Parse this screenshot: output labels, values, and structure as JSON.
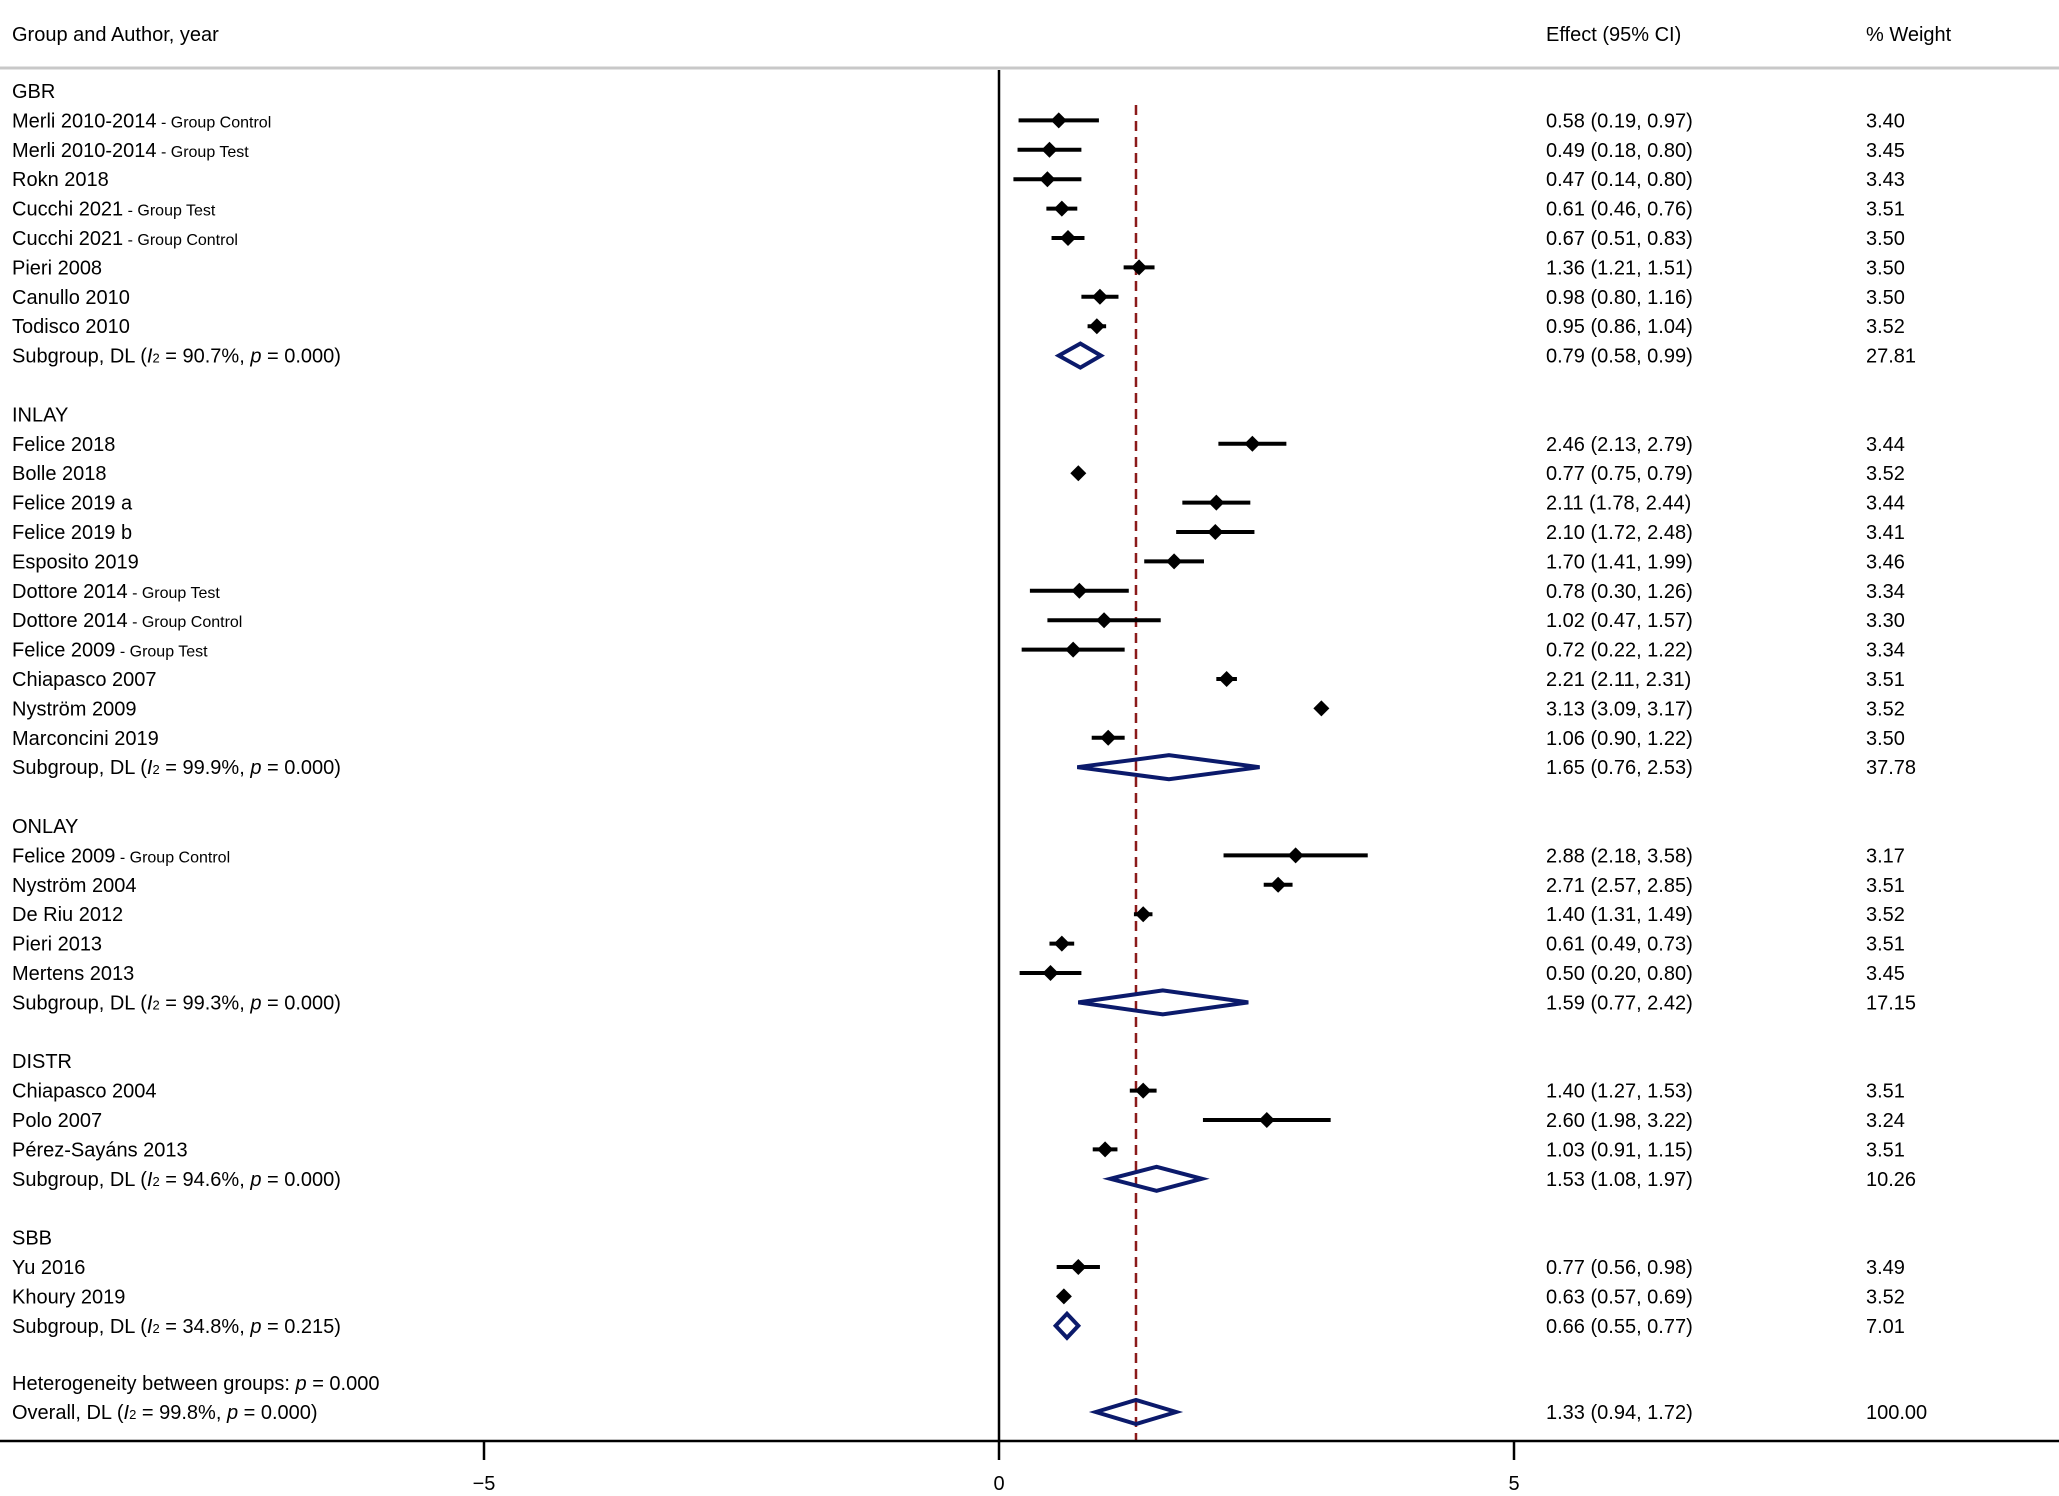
{
  "headers": {
    "study": "Group and Author, year",
    "effect": "Effect (95% CI)",
    "weight": "% Weight"
  },
  "chart_data": {
    "type": "forest",
    "overall_estimate": 1.33,
    "xaxis": {
      "ticks": [
        -5,
        0,
        5
      ],
      "tick_labels": [
        "−5",
        "0",
        "5"
      ],
      "range": [
        -10,
        10
      ]
    },
    "colors": {
      "study_marker": "#000000",
      "diamond": "#0b1a6b",
      "reference_line": "#8b1a1a",
      "rule": "#c8c8c8"
    },
    "groups": [
      {
        "name": "GBR",
        "studies": [
          {
            "author": "Merli 2010-2014",
            "note": " - Group Control",
            "est": 0.58,
            "lo": 0.19,
            "hi": 0.97,
            "ci": "0.58 (0.19, 0.97)",
            "weight": "3.40"
          },
          {
            "author": "Merli 2010-2014",
            "note": " - Group Test",
            "est": 0.49,
            "lo": 0.18,
            "hi": 0.8,
            "ci": "0.49 (0.18, 0.80)",
            "weight": "3.45"
          },
          {
            "author": "Rokn 2018",
            "note": "",
            "est": 0.47,
            "lo": 0.14,
            "hi": 0.8,
            "ci": "0.47 (0.14, 0.80)",
            "weight": "3.43"
          },
          {
            "author": "Cucchi  2021",
            "note": " - Group Test",
            "est": 0.61,
            "lo": 0.46,
            "hi": 0.76,
            "ci": "0.61 (0.46, 0.76)",
            "weight": "3.51"
          },
          {
            "author": "Cucchi  2021",
            "note": " - Group Control",
            "est": 0.67,
            "lo": 0.51,
            "hi": 0.83,
            "ci": "0.67 (0.51, 0.83)",
            "weight": "3.50"
          },
          {
            "author": "Pieri 2008",
            "note": "",
            "est": 1.36,
            "lo": 1.21,
            "hi": 1.51,
            "ci": "1.36 (1.21, 1.51)",
            "weight": "3.50"
          },
          {
            "author": "Canullo 2010",
            "note": "",
            "est": 0.98,
            "lo": 0.8,
            "hi": 1.16,
            "ci": "0.98 (0.80, 1.16)",
            "weight": "3.50"
          },
          {
            "author": "Todisco 2010",
            "note": "",
            "est": 0.95,
            "lo": 0.86,
            "hi": 1.04,
            "ci": "0.95 (0.86, 1.04)",
            "weight": "3.52"
          }
        ],
        "subgroup": {
          "i2": "90.7%",
          "p": "0.000",
          "est": 0.79,
          "lo": 0.58,
          "hi": 0.99,
          "ci": "0.79 (0.58, 0.99)",
          "weight": "27.81"
        }
      },
      {
        "name": "INLAY",
        "studies": [
          {
            "author": "Felice 2018",
            "note": "",
            "est": 2.46,
            "lo": 2.13,
            "hi": 2.79,
            "ci": "2.46 (2.13, 2.79)",
            "weight": "3.44"
          },
          {
            "author": "Bolle 2018",
            "note": "",
            "est": 0.77,
            "lo": 0.75,
            "hi": 0.79,
            "ci": "0.77 (0.75, 0.79)",
            "weight": "3.52"
          },
          {
            "author": "Felice  2019 a",
            "note": "",
            "est": 2.11,
            "lo": 1.78,
            "hi": 2.44,
            "ci": "2.11 (1.78, 2.44)",
            "weight": "3.44"
          },
          {
            "author": "Felice  2019 b",
            "note": "",
            "est": 2.1,
            "lo": 1.72,
            "hi": 2.48,
            "ci": "2.10 (1.72, 2.48)",
            "weight": "3.41"
          },
          {
            "author": "Esposito 2019",
            "note": "",
            "est": 1.7,
            "lo": 1.41,
            "hi": 1.99,
            "ci": "1.70 (1.41, 1.99)",
            "weight": "3.46"
          },
          {
            "author": "Dottore  2014",
            "note": " - Group Test",
            "est": 0.78,
            "lo": 0.3,
            "hi": 1.26,
            "ci": "0.78 (0.30, 1.26)",
            "weight": "3.34"
          },
          {
            "author": "Dottore  2014",
            "note": " - Group Control",
            "est": 1.02,
            "lo": 0.47,
            "hi": 1.57,
            "ci": "1.02 (0.47, 1.57)",
            "weight": "3.30"
          },
          {
            "author": "Felice  2009",
            "note": " - Group Test",
            "est": 0.72,
            "lo": 0.22,
            "hi": 1.22,
            "ci": "0.72 (0.22, 1.22)",
            "weight": "3.34"
          },
          {
            "author": "Chiapasco 2007",
            "note": "",
            "est": 2.21,
            "lo": 2.11,
            "hi": 2.31,
            "ci": "2.21 (2.11, 2.31)",
            "weight": "3.51"
          },
          {
            "author": "Nyström 2009",
            "note": "",
            "est": 3.13,
            "lo": 3.09,
            "hi": 3.17,
            "ci": "3.13 (3.09, 3.17)",
            "weight": "3.52"
          },
          {
            "author": "Marconcini 2019",
            "note": "",
            "est": 1.06,
            "lo": 0.9,
            "hi": 1.22,
            "ci": "1.06 (0.90, 1.22)",
            "weight": "3.50"
          }
        ],
        "subgroup": {
          "i2": "99.9%",
          "p": "0.000",
          "est": 1.65,
          "lo": 0.76,
          "hi": 2.53,
          "ci": "1.65 (0.76, 2.53)",
          "weight": "37.78"
        }
      },
      {
        "name": "ONLAY",
        "studies": [
          {
            "author": "Felice  2009",
            "note": " - Group Control",
            "est": 2.88,
            "lo": 2.18,
            "hi": 3.58,
            "ci": "2.88 (2.18, 3.58)",
            "weight": "3.17"
          },
          {
            "author": "Nyström 2004",
            "note": "",
            "est": 2.71,
            "lo": 2.57,
            "hi": 2.85,
            "ci": "2.71 (2.57, 2.85)",
            "weight": "3.51"
          },
          {
            "author": "De Riu 2012",
            "note": "",
            "est": 1.4,
            "lo": 1.31,
            "hi": 1.49,
            "ci": "1.40 (1.31, 1.49)",
            "weight": "3.52"
          },
          {
            "author": "Pieri 2013",
            "note": "",
            "est": 0.61,
            "lo": 0.49,
            "hi": 0.73,
            "ci": "0.61 (0.49, 0.73)",
            "weight": "3.51"
          },
          {
            "author": "Mertens 2013",
            "note": "",
            "est": 0.5,
            "lo": 0.2,
            "hi": 0.8,
            "ci": "0.50 (0.20, 0.80)",
            "weight": "3.45"
          }
        ],
        "subgroup": {
          "i2": "99.3%",
          "p": "0.000",
          "est": 1.59,
          "lo": 0.77,
          "hi": 2.42,
          "ci": "1.59 (0.77, 2.42)",
          "weight": "17.15"
        }
      },
      {
        "name": "DISTR",
        "studies": [
          {
            "author": "Chiapasco 2004",
            "note": "",
            "est": 1.4,
            "lo": 1.27,
            "hi": 1.53,
            "ci": "1.40 (1.27, 1.53)",
            "weight": "3.51"
          },
          {
            "author": "Polo 2007",
            "note": "",
            "est": 2.6,
            "lo": 1.98,
            "hi": 3.22,
            "ci": "2.60 (1.98, 3.22)",
            "weight": "3.24"
          },
          {
            "author": "Pérez-Sayáns 2013",
            "note": "",
            "est": 1.03,
            "lo": 0.91,
            "hi": 1.15,
            "ci": "1.03 (0.91, 1.15)",
            "weight": "3.51"
          }
        ],
        "subgroup": {
          "i2": "94.6%",
          "p": "0.000",
          "est": 1.53,
          "lo": 1.08,
          "hi": 1.97,
          "ci": "1.53 (1.08, 1.97)",
          "weight": "10.26"
        }
      },
      {
        "name": "SBB",
        "studies": [
          {
            "author": "Yu 2016",
            "note": "",
            "est": 0.77,
            "lo": 0.56,
            "hi": 0.98,
            "ci": "0.77 (0.56, 0.98)",
            "weight": "3.49"
          },
          {
            "author": "Khoury 2019",
            "note": "",
            "est": 0.63,
            "lo": 0.57,
            "hi": 0.69,
            "ci": "0.63 (0.57, 0.69)",
            "weight": "3.52"
          }
        ],
        "subgroup": {
          "i2": "34.8%",
          "p": "0.215",
          "est": 0.66,
          "lo": 0.55,
          "hi": 0.77,
          "ci": "0.66 (0.55, 0.77)",
          "weight": "7.01"
        }
      }
    ],
    "subgroup_label": "Subgroup, DL",
    "heterogeneity": {
      "label": "Heterogeneity between groups:",
      "p": "0.000"
    },
    "overall": {
      "label": "Overall, DL",
      "i2": "99.8%",
      "p": "0.000",
      "est": 1.33,
      "lo": 0.94,
      "hi": 1.72,
      "ci": "1.33 (0.94, 1.72)",
      "weight": "100.00"
    }
  }
}
